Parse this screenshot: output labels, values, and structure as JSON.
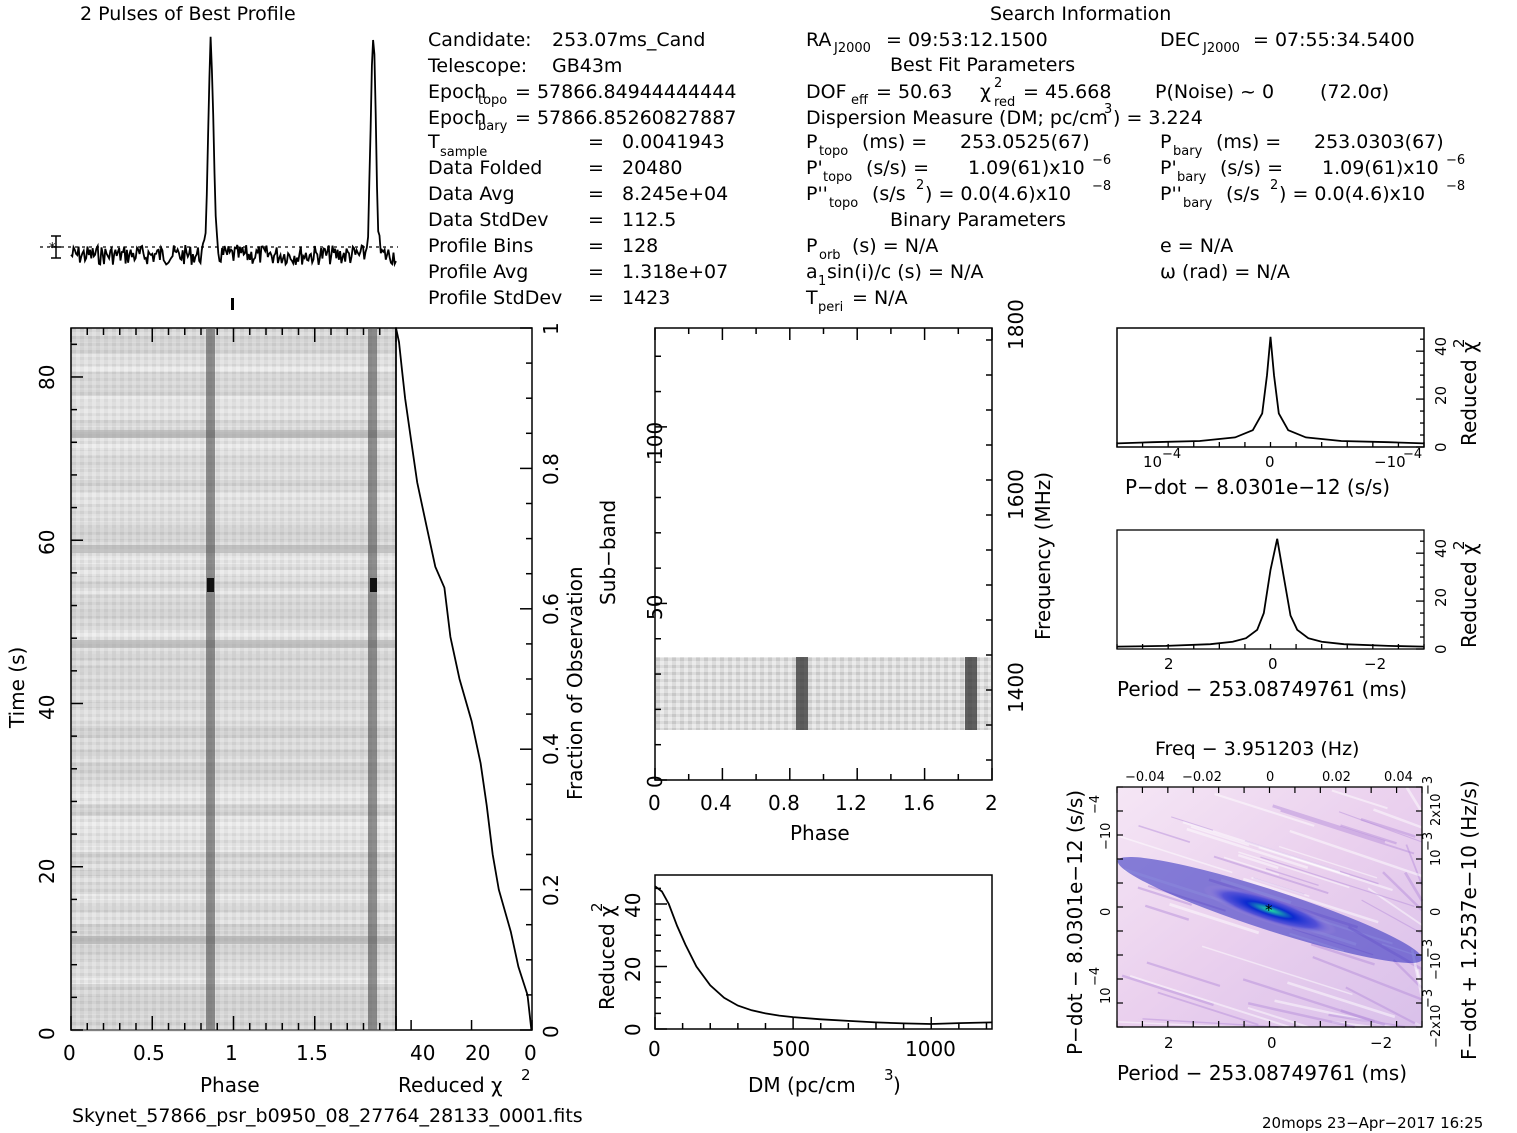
{
  "header": {
    "profile_title": "2 Pulses of Best Profile",
    "search_title": "Search Information"
  },
  "info_left": [
    [
      "Candidate:",
      "253.07ms_Cand"
    ],
    [
      "Telescope:",
      "GB43m"
    ],
    [
      "Epoch",
      "= 57866.84944444444"
    ],
    [
      "Epoch",
      "= 57866.85260827887"
    ],
    [
      "T",
      "=",
      "0.0041943"
    ],
    [
      "Data Folded",
      "=",
      "20480"
    ],
    [
      "Data Avg",
      "=",
      "8.245e+04"
    ],
    [
      "Data StdDev",
      "=",
      "112.5"
    ],
    [
      "Profile Bins",
      "=",
      "128"
    ],
    [
      "Profile Avg",
      "=",
      "1.318e+07"
    ],
    [
      "Profile StdDev",
      "=",
      "1423"
    ]
  ],
  "info_subscripts": {
    "topo": "topo",
    "bary": "bary",
    "sample": "sample",
    "j2000": "J2000",
    "red": "red",
    "eff": "eff",
    "orb": "orb",
    "peri": "peri"
  },
  "info_mid": {
    "ra": "RA",
    "ra_val": "= 09:53:12.1500",
    "dec": "DEC",
    "dec_val": "= 07:55:34.5400",
    "best_fit": "Best Fit Parameters",
    "dof": "DOF",
    "dof_val": "= 50.63",
    "chi": "χ",
    "chi_val": "= 45.668",
    "pnoise": "P(Noise) ~ 0",
    "sigma": "(72.0σ)",
    "dm_line": "Dispersion Measure (DM; pc/cm",
    "dm_val": ") = 3.224",
    "ptopo": "(ms) =",
    "ptopo_val": "253.0525(67)",
    "pbary": "(ms) =",
    "pbary_val": "253.0303(67)",
    "pdtopo": "(s/s) =",
    "pdtopo_val": "1.09(61)x10",
    "pdbary": "(s/s) =",
    "pdbary_val": "1.09(61)x10",
    "exp6": "−6",
    "pddtopo": "(s/s",
    "pdd_val": ") = 0.0(4.6)x10",
    "exp8": "−8",
    "binary": "Binary Parameters",
    "porb": "(s) = N/A",
    "e": "e = N/A",
    "a1": "a",
    "a1_rest": "sin(i)/c (s) = N/A",
    "omega": "ω (rad) = N/A",
    "tperi": "= N/A"
  },
  "footer": {
    "filename": "Skynet_57866_psr_b0950_08_27764_28133_0001.fits",
    "stamp": "20mops 23−Apr−2017 16:25"
  },
  "axes": {
    "time_label": "Time (s)",
    "phase_label": "Phase",
    "redchi_label": "Reduced χ",
    "frac_label": "Fraction of Observation",
    "subband_label": "Sub−band",
    "freq_label": "Frequency (MHz)",
    "dm_label": "DM (pc/cm",
    "pdot_label": "P−dot − 8.0301e−12 (s/s)",
    "period_label": "Period − 253.08749761 (ms)",
    "freq_top_label": "Freq − 3.951203 (Hz)",
    "fdot_label": "F−dot + 1.2537e−10 (Hz/s)",
    "redchi_plain": "Reduced χ"
  },
  "colors": {
    "trace": "#000000",
    "map_low": "#f3ddf3",
    "map_mid": "#1010a0",
    "map_peak": "#20e0a0"
  },
  "chart_data": [
    {
      "type": "line",
      "title": "2 Pulses of Best Profile",
      "xlabel": "Phase",
      "ylabel": "",
      "xlim": [
        0,
        2
      ],
      "peaks_phase": [
        0.86,
        1.86
      ],
      "baseline": "dotted mean line with error bar"
    },
    {
      "type": "heatmap",
      "xlabel": "Phase",
      "ylabel": "Time (s)",
      "xlim": [
        0,
        2
      ],
      "ylim": [
        0,
        87
      ],
      "x_ticks": [
        "0",
        "0.5",
        "1",
        "1.5"
      ],
      "y_ticks": [
        "0",
        "20",
        "40",
        "60",
        "80"
      ],
      "pulse_phases": [
        0.86,
        1.86
      ]
    },
    {
      "type": "line",
      "xlabel": "Reduced χ2",
      "ylabel": "Fraction of Observation",
      "xlim": [
        45,
        0
      ],
      "ylim": [
        0,
        1
      ],
      "x_ticks": [
        "40",
        "20",
        "0"
      ],
      "y_ticks": [
        "0",
        "0.2",
        "0.4",
        "0.6",
        "0.8",
        "1"
      ],
      "x": [
        0.2,
        1.5,
        4.5,
        7,
        11,
        13,
        15,
        17,
        20,
        24,
        27,
        29,
        32,
        35,
        38,
        40,
        42,
        43,
        44,
        45
      ],
      "y": [
        0,
        0.05,
        0.09,
        0.14,
        0.2,
        0.25,
        0.32,
        0.38,
        0.44,
        0.5,
        0.56,
        0.63,
        0.66,
        0.72,
        0.78,
        0.84,
        0.9,
        0.94,
        0.98,
        1.0
      ]
    },
    {
      "type": "heatmap",
      "xlabel": "Phase",
      "ylabel": "Sub−band",
      "y2label": "Frequency (MHz)",
      "xlim": [
        0,
        2
      ],
      "ylim": [
        0,
        128
      ],
      "x_ticks": [
        "0",
        "0.4",
        "0.8",
        "1.2",
        "1.6",
        "2"
      ],
      "y_ticks": [
        "0",
        "50",
        "100"
      ],
      "y2_ticks": [
        "1400",
        "1600",
        "1800"
      ],
      "occupied_subbands": [
        14,
        35
      ],
      "pulse_phases": [
        0.86,
        1.86
      ]
    },
    {
      "type": "line",
      "xlabel": "DM (pc/cm3)",
      "ylabel": "Reduced χ2",
      "xlim": [
        0,
        1220
      ],
      "ylim": [
        0,
        48
      ],
      "x_ticks": [
        "0",
        "500",
        "1000"
      ],
      "y_ticks": [
        "0",
        "20",
        "40"
      ],
      "x": [
        0,
        25,
        50,
        80,
        110,
        150,
        200,
        250,
        300,
        350,
        400,
        450,
        500,
        600,
        700,
        800,
        900,
        1000,
        1100,
        1220
      ],
      "y": [
        45.7,
        44,
        40,
        33,
        27,
        20,
        14,
        10,
        7.5,
        6,
        5,
        4.3,
        3.8,
        3.1,
        2.6,
        2.1,
        1.8,
        1.6,
        1.9,
        2.1
      ]
    },
    {
      "type": "line",
      "xlabel": "P−dot − 8.0301e−12 (s/s)",
      "ylabel": "Reduced χ2",
      "ylim": [
        0,
        48
      ],
      "x_ticks": [
        "10−4",
        "0",
        "−10−4"
      ],
      "y_ticks": [
        "0",
        "20",
        "40"
      ],
      "x": [
        -1.3,
        -1.0,
        -0.6,
        -0.3,
        -0.15,
        -0.07,
        -0.03,
        0,
        0.03,
        0.07,
        0.15,
        0.3,
        0.6,
        1.0,
        1.3
      ],
      "y": [
        1.5,
        2,
        2.5,
        4,
        7,
        14,
        30,
        46,
        30,
        14,
        7,
        4,
        2.5,
        2,
        1.5
      ]
    },
    {
      "type": "line",
      "xlabel": "Period − 253.08749761 (ms)",
      "ylabel": "Reduced χ2",
      "ylim": [
        0,
        48
      ],
      "x_ticks": [
        "2",
        "0",
        "−2"
      ],
      "y_ticks": [
        "0",
        "20",
        "40"
      ],
      "x": [
        3.6,
        2.5,
        1.5,
        1.0,
        0.7,
        0.45,
        0.3,
        0.15,
        0.0,
        -0.15,
        -0.3,
        -0.45,
        -0.7,
        -1.0,
        -1.5,
        -2.5,
        -3.3
      ],
      "y": [
        1,
        1.3,
        2,
        3,
        4.5,
        8,
        15,
        33,
        46,
        30,
        14,
        8,
        4.5,
        3,
        2,
        1.3,
        1
      ]
    },
    {
      "type": "heatmap",
      "title": "Freq − 3.951203 (Hz)",
      "xlabel": "Period − 253.08749761 (ms)",
      "ylabel": "P−dot − 8.0301e−12 (s/s)",
      "y2label": "F−dot + 1.2537e−10 (Hz/s)",
      "x_ticks": [
        "2",
        "0",
        "−2"
      ],
      "x2_ticks": [
        "−0.04",
        "−0.02",
        "0",
        "0.02",
        "0.04"
      ],
      "y_ticks": [
        "10−4",
        "0",
        "−10−4"
      ],
      "y2_ticks": [
        "−2x10−3",
        "−10−3",
        "0",
        "10−3",
        "2x10−3"
      ]
    }
  ]
}
